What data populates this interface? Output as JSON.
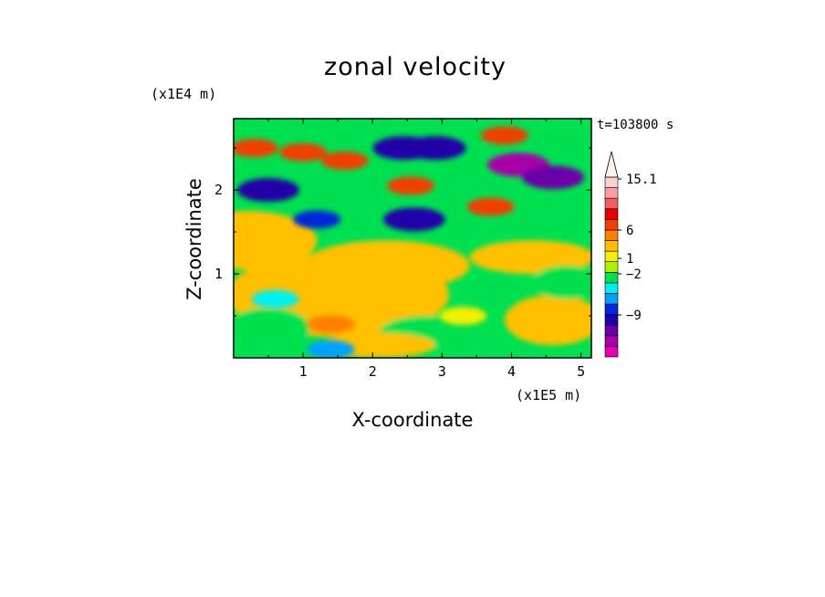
{
  "chart_data": {
    "type": "heatmap",
    "title": "zonal velocity",
    "xlabel": "X-coordinate",
    "ylabel": "Z-coordinate",
    "x_unit": "(x1E5 m)",
    "y_unit": "(x1E4 m)",
    "time_label": "t=103800 s",
    "xlim": [
      0,
      5.15
    ],
    "ylim": [
      0,
      2.85
    ],
    "x_ticks": [
      1,
      2,
      3,
      4,
      5
    ],
    "y_ticks": [
      1,
      2
    ],
    "x_tick_labels": [
      "1",
      "2",
      "3",
      "4",
      "5"
    ],
    "y_tick_labels": [
      "1",
      "2"
    ],
    "colorbar": {
      "colors": [
        "#e800b0",
        "#a800a8",
        "#6a00a8",
        "#2000a8",
        "#0028dc",
        "#00a0ff",
        "#00f0f0",
        "#00e050",
        "#b0f000",
        "#f0f000",
        "#ffc000",
        "#ff8000",
        "#f04000",
        "#e80000",
        "#f06060",
        "#f8a0a0",
        "#ffd0d0"
      ],
      "labels": [
        {
          "text": "15.1",
          "value": 15.1
        },
        {
          "text": "6",
          "value": 6
        },
        {
          "text": "1",
          "value": 1
        },
        {
          "text": "−2",
          "value": -2
        },
        {
          "text": "−9",
          "value": -9
        }
      ],
      "extend": "max"
    },
    "features": [
      {
        "x": 0.3,
        "z": 2.5,
        "value": 6
      },
      {
        "x": 1.0,
        "z": 2.45,
        "value": 5
      },
      {
        "x": 1.6,
        "z": 2.35,
        "value": 5
      },
      {
        "x": 0.5,
        "z": 2.0,
        "value": -9
      },
      {
        "x": 1.2,
        "z": 1.65,
        "value": -7
      },
      {
        "x": 2.45,
        "z": 2.5,
        "value": -9
      },
      {
        "x": 2.9,
        "z": 2.5,
        "value": -9
      },
      {
        "x": 2.55,
        "z": 2.05,
        "value": 6
      },
      {
        "x": 2.6,
        "z": 1.65,
        "value": -9
      },
      {
        "x": 3.7,
        "z": 1.8,
        "value": 4
      },
      {
        "x": 4.1,
        "z": 2.3,
        "value": -12
      },
      {
        "x": 4.6,
        "z": 2.15,
        "value": -10
      },
      {
        "x": 3.9,
        "z": 2.65,
        "value": 5
      },
      {
        "x": 1.4,
        "z": 0.4,
        "value": 3
      },
      {
        "x": 1.4,
        "z": 0.1,
        "value": -5
      },
      {
        "x": 3.3,
        "z": 0.5,
        "value": 1
      },
      {
        "x": 0.6,
        "z": 0.7,
        "value": -2
      }
    ]
  }
}
